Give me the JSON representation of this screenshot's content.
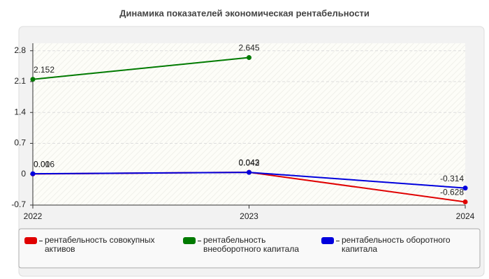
{
  "chart_data": {
    "type": "line",
    "title": "Динамика показателей экономическая рентабельности",
    "categories": [
      "2022",
      "2023",
      "2024"
    ],
    "series": [
      {
        "name": "рентабельность совокупных активов",
        "color": "#e00000",
        "values": [
          0.006,
          0.043,
          -0.628
        ]
      },
      {
        "name": "рентабельность внеоборотного капитала",
        "color": "#007a00",
        "values": [
          2.152,
          2.645,
          null
        ]
      },
      {
        "name": "рентабельность оборотного капитала",
        "color": "#0000dd",
        "values": [
          0.01,
          0.042,
          -0.314
        ]
      }
    ],
    "ylim": [
      -0.7,
      2.97
    ],
    "yticks": [
      -0.7,
      0,
      0.7,
      1.4,
      2.1,
      2.8
    ],
    "grid": true
  }
}
